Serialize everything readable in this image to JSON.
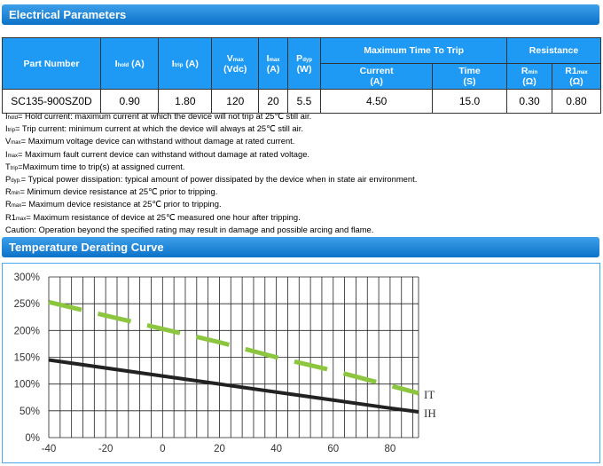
{
  "section1": {
    "title": "Electrical Parameters"
  },
  "table": {
    "headers": {
      "part": "Part Number",
      "ihold": "I",
      "ihold_sub": "hold",
      "ihold_unit": " (A)",
      "itrip": "I",
      "itrip_sub": "trip",
      "itrip_unit": " (A)",
      "vmax": "V",
      "vmax_sub": "max",
      "vmax_unit": "(Vdc)",
      "imax": "I",
      "imax_sub": "max",
      "imax_unit": "(A)",
      "pdyp": "P",
      "pdyp_sub": "dyp",
      "pdyp_unit": "(W)",
      "mtt": "Maximum Time To Trip",
      "current": "Current",
      "current_unit": "(A)",
      "time": "Time",
      "time_unit": "(S)",
      "resistance": "Resistance",
      "rmin": "R",
      "rmin_sub": "min",
      "rmin_unit": "(Ω)",
      "r1max": "R1",
      "r1max_sub": "max",
      "r1max_unit": "(Ω)"
    },
    "row": [
      "SC135-900SZ0D",
      "0.90",
      "1.80",
      "120",
      "20",
      "5.5",
      "4.50",
      "15.0",
      "0.30",
      "0.80"
    ]
  },
  "notes": [
    {
      "sym": "I",
      "sub": "hold",
      "text": "= Hold current: maximum current at which the device will not trip at 25℃  still air."
    },
    {
      "sym": "I",
      "sub": "trip",
      "text": "= Trip current: minimum current at which the device will always at 25℃  still air."
    },
    {
      "sym": "V",
      "sub": "max",
      "text": "= Maximum voltage device can withstand without damage at rated current."
    },
    {
      "sym": "I",
      "sub": "max",
      "text": "= Maximum fault current device can withstand without damage at rated voltage."
    },
    {
      "sym": "T",
      "sub": "trip",
      "text": "=Maximum time to trip(s) at assigned current."
    },
    {
      "sym": "P",
      "sub": "dyp.",
      "text": "= Typical power dissipation: typical amount of power dissipated by the device when in state air environment."
    },
    {
      "sym": "R",
      "sub": "min",
      "text": "= Minimum device resistance at 25℃  prior to tripping."
    },
    {
      "sym": "R",
      "sub": "max",
      "text": "= Maximum device resistance at 25℃  prior to tripping."
    },
    {
      "sym": "R1",
      "sub": "max",
      "text": "= Maximum resistance of device at 25℃  measured one hour after tripping."
    },
    {
      "sym": "",
      "sub": "",
      "text": "Caution: Operation beyond the specified rating may result in damage and possible arcing and flame."
    }
  ],
  "section2": {
    "title": "Temperature Derating Curve"
  },
  "chart_data": {
    "type": "line",
    "title": "",
    "xlabel": "",
    "ylabel": "",
    "xlim": [
      -40,
      90
    ],
    "ylim": [
      0,
      300
    ],
    "xticks": [
      -40,
      -20,
      0,
      20,
      40,
      60,
      80
    ],
    "yticks": [
      "0%",
      "50%",
      "100%",
      "150%",
      "200%",
      "250%",
      "300%"
    ],
    "grid": true,
    "series": [
      {
        "name": "IT",
        "color": "#8cc63f",
        "style": "dashed",
        "x": [
          -40,
          0,
          20,
          40,
          60,
          80,
          90
        ],
        "y": [
          253,
          203,
          178,
          150,
          125,
          97,
          83
        ]
      },
      {
        "name": "IH",
        "color": "#222222",
        "style": "solid",
        "x": [
          -40,
          0,
          20,
          40,
          60,
          80,
          90
        ],
        "y": [
          145,
          115,
          100,
          85,
          70,
          55,
          48
        ]
      }
    ]
  }
}
